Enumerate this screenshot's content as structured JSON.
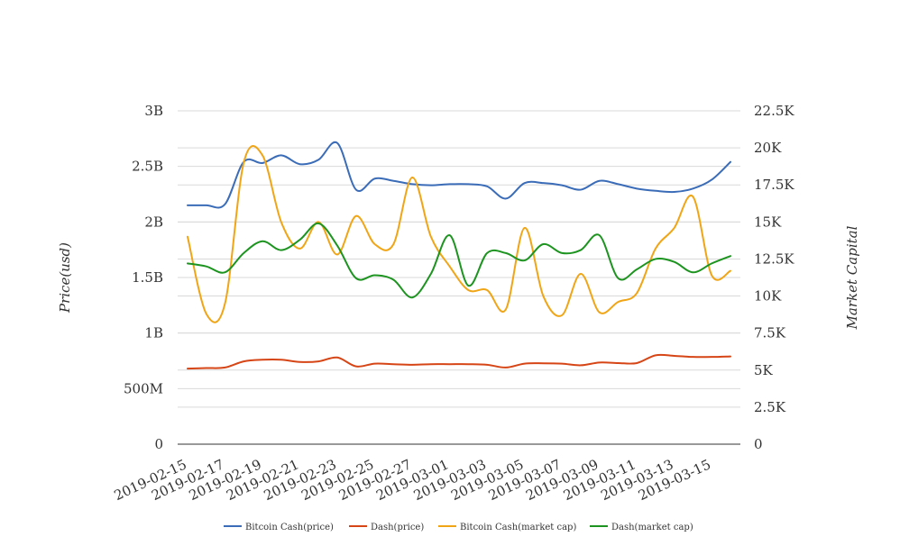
{
  "chart_data": {
    "type": "line",
    "x": [
      "2019-02-15",
      "2019-02-16",
      "2019-02-17",
      "2019-02-18",
      "2019-02-19",
      "2019-02-20",
      "2019-02-21",
      "2019-02-22",
      "2019-02-23",
      "2019-02-24",
      "2019-02-25",
      "2019-02-26",
      "2019-02-27",
      "2019-02-28",
      "2019-03-01",
      "2019-03-02",
      "2019-03-03",
      "2019-03-04",
      "2019-03-05",
      "2019-03-06",
      "2019-03-07",
      "2019-03-08",
      "2019-03-09",
      "2019-03-10",
      "2019-03-11",
      "2019-03-12",
      "2019-03-13",
      "2019-03-14",
      "2019-03-15",
      "2019-03-16"
    ],
    "x_tick_labels": [
      "2019-02-15",
      "2019-02-17",
      "2019-02-19",
      "2019-02-21",
      "2019-02-23",
      "2019-02-25",
      "2019-02-27",
      "2019-03-01",
      "2019-03-03",
      "2019-03-05",
      "2019-03-07",
      "2019-03-09",
      "2019-03-11",
      "2019-03-13",
      "2019-03-15"
    ],
    "y_left": {
      "label": "Price(usd)",
      "range": [
        0,
        3000000000
      ],
      "ticks": [
        0,
        500000000,
        1000000000,
        1500000000,
        2000000000,
        2500000000,
        3000000000
      ],
      "tick_labels": [
        "0",
        "500M",
        "1B",
        "1.5B",
        "2B",
        "2.5B",
        "3B"
      ]
    },
    "y_right": {
      "label": "Market Capital",
      "range": [
        0,
        22500
      ],
      "ticks": [
        0,
        2500,
        5000,
        7500,
        10000,
        12500,
        15000,
        17500,
        20000,
        22500
      ],
      "tick_labels": [
        "0",
        "2.5K",
        "5K",
        "7.5K",
        "10K",
        "12.5K",
        "15K",
        "17.5K",
        "20K",
        "22.5K"
      ]
    },
    "grid": true,
    "legend_position": "bottom",
    "series": [
      {
        "name": "Bitcoin Cash(price)",
        "axis": "left",
        "color": "#3b6cb7",
        "values": [
          2150000000,
          2150000000,
          2160000000,
          2540000000,
          2530000000,
          2600000000,
          2520000000,
          2560000000,
          2710000000,
          2290000000,
          2390000000,
          2370000000,
          2340000000,
          2330000000,
          2340000000,
          2340000000,
          2320000000,
          2210000000,
          2350000000,
          2350000000,
          2330000000,
          2290000000,
          2370000000,
          2340000000,
          2300000000,
          2280000000,
          2270000000,
          2300000000,
          2380000000,
          2540000000
        ]
      },
      {
        "name": "Dash(price)",
        "axis": "left",
        "color": "#d64515",
        "values": [
          680000000,
          685000000,
          690000000,
          745000000,
          760000000,
          760000000,
          740000000,
          745000000,
          780000000,
          700000000,
          725000000,
          720000000,
          715000000,
          720000000,
          720000000,
          720000000,
          715000000,
          690000000,
          725000000,
          728000000,
          725000000,
          710000000,
          735000000,
          730000000,
          730000000,
          800000000,
          795000000,
          785000000,
          785000000,
          790000000
        ]
      },
      {
        "name": "Bitcoin Cash(market cap)",
        "axis": "right",
        "color": "#f0a516",
        "values": [
          14000,
          8800,
          9500,
          19000,
          19500,
          15000,
          13200,
          15000,
          12800,
          15400,
          13500,
          13500,
          18000,
          14000,
          12000,
          10400,
          10400,
          9100,
          14600,
          10000,
          8700,
          11500,
          8900,
          9600,
          10200,
          13200,
          14600,
          16700,
          11400,
          11700
        ]
      },
      {
        "name": "Dash(market cap)",
        "axis": "right",
        "color": "#1d9420",
        "values": [
          12200,
          12000,
          11600,
          12900,
          13700,
          13100,
          13800,
          14900,
          13400,
          11200,
          11400,
          11100,
          9900,
          11500,
          14100,
          10700,
          12900,
          12900,
          12400,
          13500,
          12900,
          13100,
          14100,
          11200,
          11800,
          12500,
          12300,
          11600,
          12200,
          12700
        ]
      }
    ]
  }
}
